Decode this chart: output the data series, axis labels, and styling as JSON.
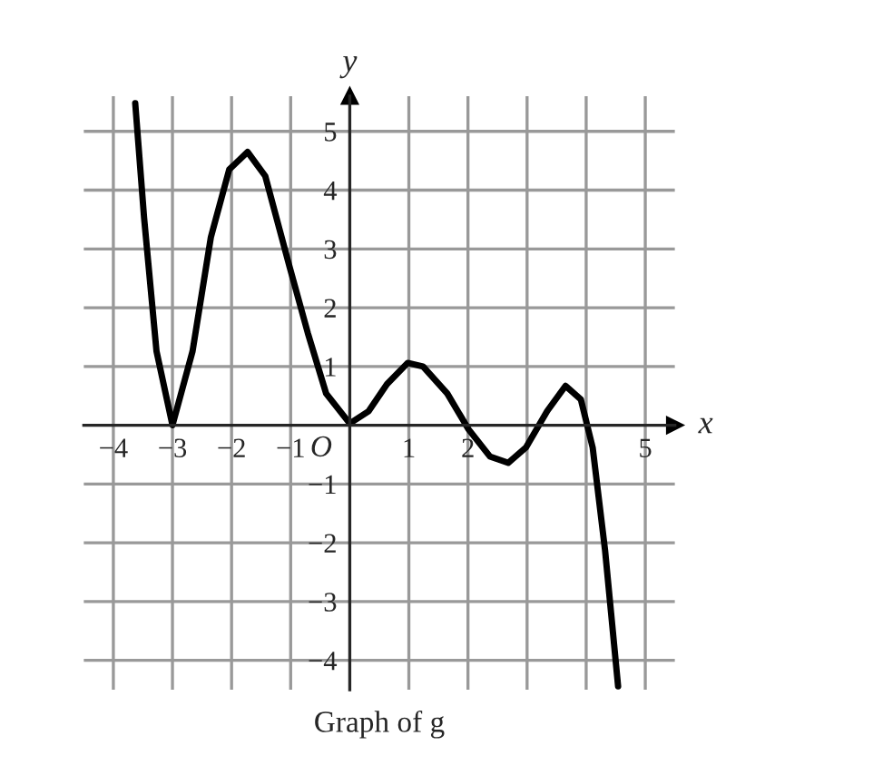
{
  "chart_data": {
    "type": "line",
    "title": "Graph of g",
    "xlabel": "x",
    "ylabel": "y",
    "x": [
      -3.63,
      -3.48,
      -3.27,
      -3.0,
      -2.66,
      -2.35,
      -2.04,
      -1.73,
      -1.43,
      -1.02,
      -0.71,
      -0.4,
      0,
      0.32,
      0.63,
      0.98,
      1.24,
      1.65,
      2.01,
      2.37,
      2.68,
      2.98,
      3.34,
      3.65,
      3.91,
      4.11,
      4.32,
      4.54
    ],
    "series": [
      {
        "color": "#000000",
        "values": [
          5.48,
          3.53,
          1.26,
          0,
          1.26,
          3.2,
          4.35,
          4.65,
          4.24,
          2.7,
          1.57,
          0.54,
          0.03,
          0.24,
          0.7,
          1.06,
          1.0,
          0.54,
          -0.07,
          -0.53,
          -0.64,
          -0.38,
          0.24,
          0.67,
          0.44,
          -0.38,
          -2.13,
          -4.44
        ]
      }
    ],
    "xlim": [
      -4.5,
      5.5
    ],
    "ylim": [
      -4.5,
      5.6
    ],
    "xticks": [
      -4,
      -3,
      -2,
      -1,
      1,
      2,
      {
        "value": 3,
        "label": null
      },
      {
        "value": 4,
        "label": null
      },
      5
    ],
    "yticks": [
      -4,
      -3,
      -2,
      -1,
      1,
      2,
      3,
      4,
      5
    ],
    "grid": true,
    "marker": "none",
    "line_style": "solid",
    "annotations": [
      {
        "text": "O",
        "x": 0,
        "y": 0
      }
    ]
  }
}
